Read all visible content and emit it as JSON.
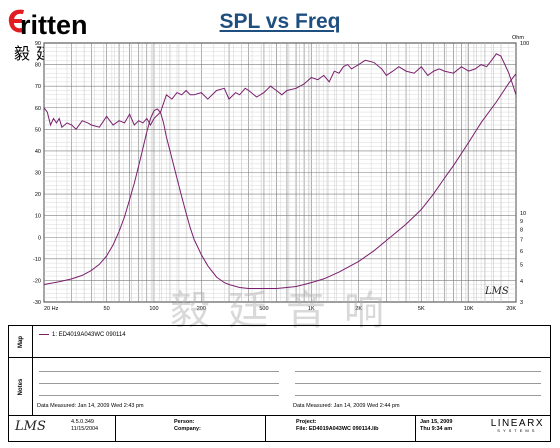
{
  "logo": {
    "brand": "ritten",
    "chinese": "毅廷音响"
  },
  "chart_data": {
    "type": "line",
    "title": "SPL vs Freq",
    "x_scale": "log",
    "xlim": [
      20,
      20000
    ],
    "x_ticks": [
      {
        "v": 20,
        "label": "20 Hz"
      },
      {
        "v": 50,
        "label": "50"
      },
      {
        "v": 100,
        "label": "100"
      },
      {
        "v": 200,
        "label": "200"
      },
      {
        "v": 500,
        "label": "500"
      },
      {
        "v": 1000,
        "label": "1K"
      },
      {
        "v": 2000,
        "label": "2K"
      },
      {
        "v": 5000,
        "label": "5K"
      },
      {
        "v": 10000,
        "label": "10K"
      },
      {
        "v": 20000,
        "label": "20K"
      }
    ],
    "left_axis": {
      "ylim": [
        -30,
        90
      ],
      "ticks": [
        "90",
        "80",
        "70",
        "60",
        "50",
        "40",
        "30",
        "20",
        "10",
        "0",
        "-10",
        "-20",
        "-30"
      ]
    },
    "right_axis": {
      "unit": "Ohm",
      "scale": "log",
      "ylim": [
        3,
        100
      ],
      "ticks": [
        {
          "v": 100,
          "label": "100"
        },
        {
          "v": 10,
          "label": "10"
        },
        {
          "v": 9,
          "label": "9"
        },
        {
          "v": 8,
          "label": "8"
        },
        {
          "v": 7,
          "label": "7"
        },
        {
          "v": 6,
          "label": "6"
        },
        {
          "v": 5,
          "label": "5"
        },
        {
          "v": 4,
          "label": "4"
        },
        {
          "v": 3,
          "label": "3"
        }
      ]
    },
    "grid": true,
    "series": [
      {
        "name": "SPL",
        "axis": "left",
        "color": "#7a1f6e",
        "x": [
          20,
          21,
          22,
          23,
          24,
          25,
          26,
          28,
          30,
          32,
          35,
          38,
          40,
          45,
          50,
          55,
          60,
          65,
          70,
          75,
          80,
          85,
          90,
          95,
          100,
          110,
          120,
          130,
          140,
          150,
          160,
          170,
          180,
          200,
          220,
          250,
          280,
          300,
          330,
          350,
          380,
          400,
          450,
          500,
          550,
          600,
          650,
          700,
          800,
          900,
          1000,
          1100,
          1200,
          1300,
          1400,
          1500,
          1600,
          1700,
          1800,
          2000,
          2200,
          2500,
          2800,
          3000,
          3300,
          3600,
          4000,
          4500,
          5000,
          5500,
          6000,
          6500,
          7000,
          8000,
          9000,
          10000,
          11000,
          12000,
          13000,
          14000,
          15000,
          16000,
          17000,
          18000,
          19000,
          20000
        ],
        "y": [
          60,
          58,
          52,
          55,
          53,
          55,
          51,
          53,
          52,
          50,
          54,
          53,
          52,
          51,
          56,
          52,
          54,
          53,
          57,
          52,
          54,
          53,
          55,
          52,
          55,
          58,
          66,
          64,
          67,
          66,
          68,
          66,
          66,
          67,
          64,
          68,
          69,
          64,
          67,
          66,
          69,
          68,
          65,
          67,
          70,
          68,
          66,
          68,
          69,
          71,
          74,
          73,
          75,
          72,
          77,
          76,
          79,
          80,
          78,
          80,
          82,
          81,
          78,
          75,
          77,
          79,
          77,
          76,
          79,
          75,
          77,
          78,
          77,
          76,
          79,
          77,
          78,
          80,
          79,
          82,
          85,
          84,
          80,
          76,
          71,
          66
        ]
      },
      {
        "name": "Impedance",
        "axis": "right",
        "color": "#7a1f6e",
        "x": [
          20,
          25,
          30,
          35,
          40,
          45,
          50,
          55,
          60,
          65,
          70,
          75,
          80,
          85,
          90,
          95,
          100,
          105,
          110,
          115,
          120,
          130,
          140,
          150,
          160,
          170,
          180,
          200,
          220,
          250,
          280,
          300,
          350,
          400,
          450,
          500,
          600,
          700,
          800,
          900,
          1000,
          1200,
          1500,
          2000,
          2500,
          3000,
          4000,
          5000,
          6000,
          7000,
          8000,
          10000,
          12000,
          15000,
          18000,
          20000
        ],
        "y": [
          3.8,
          3.95,
          4.1,
          4.3,
          4.6,
          5.0,
          5.6,
          6.5,
          7.8,
          9.5,
          12,
          15,
          19,
          24,
          30,
          36,
          40,
          41,
          39,
          34,
          28,
          21,
          16,
          12.5,
          10,
          8.2,
          7,
          5.7,
          4.9,
          4.2,
          3.9,
          3.8,
          3.65,
          3.6,
          3.6,
          3.6,
          3.6,
          3.65,
          3.7,
          3.8,
          3.9,
          4.1,
          4.5,
          5.2,
          6.0,
          6.9,
          8.6,
          10.5,
          13,
          16,
          19,
          26,
          34,
          45,
          58,
          66
        ]
      }
    ]
  },
  "plot_badge": "LMS",
  "watermark": "毅廷音响",
  "panel": {
    "map_label": "Map",
    "legend": "1: ED4019A043WC  090114",
    "notes_label": "Notes",
    "measured_left": "Data Measured:  Jan 14, 2009  Wed  2:43 pm",
    "measured_right": "Data Measured:  Jan 14, 2009  Wed  2:44 pm",
    "footer": {
      "lms": "LMS",
      "version": "4.5.0.349",
      "version_date": "11/15/2004",
      "person_label": "Person:",
      "company_label": "Company:",
      "project_label": "Project:",
      "file_label": "File: ED4019A043WC 090114.lib",
      "date": "Jan 15, 2009",
      "time": "Thu  9:34 am",
      "brand": "LINEARX",
      "brand_sub": "SYSTEMS"
    }
  }
}
